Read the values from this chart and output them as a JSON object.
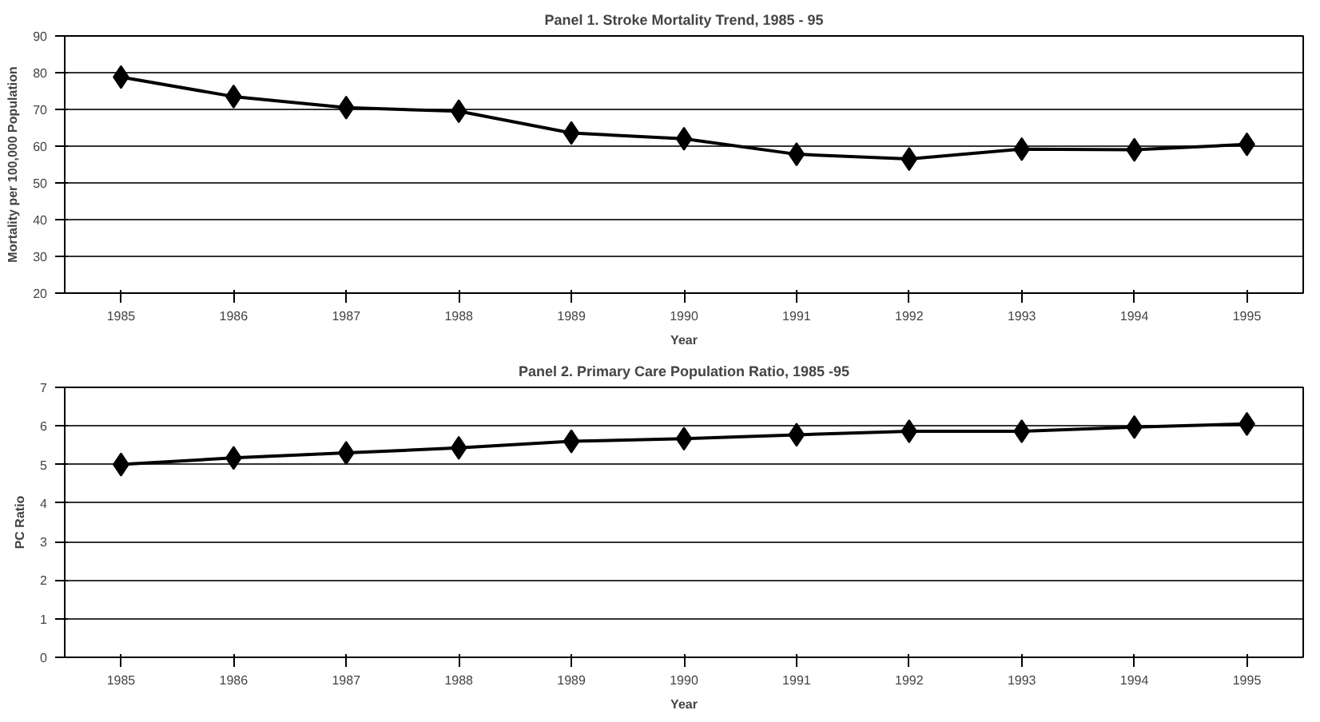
{
  "chart_data": [
    {
      "type": "line",
      "title": "Panel 1. Stroke Mortality Trend, 1985 - 95",
      "xlabel": "Year",
      "ylabel": "Mortality per 100,000 Population",
      "categories": [
        "1985",
        "1986",
        "1987",
        "1988",
        "1989",
        "1990",
        "1991",
        "1992",
        "1993",
        "1994",
        "1995"
      ],
      "series": [
        {
          "color": "#000000",
          "values": [
            78.8,
            73.5,
            70.5,
            69.5,
            63.6,
            62,
            57.8,
            56.5,
            59.2,
            59,
            60.5
          ]
        }
      ],
      "ylim": [
        20,
        90
      ],
      "yticks": [
        20,
        30,
        40,
        50,
        60,
        70,
        80,
        90
      ],
      "grid": "y",
      "marker": "diamond",
      "line_style": "solid"
    },
    {
      "type": "line",
      "title": "Panel 2. Primary Care Population Ratio, 1985 -95",
      "xlabel": "Year",
      "ylabel": "PC Ratio",
      "categories": [
        "1985",
        "1986",
        "1987",
        "1988",
        "1989",
        "1990",
        "1991",
        "1992",
        "1993",
        "1994",
        "1995"
      ],
      "series": [
        {
          "color": "#000000",
          "values": [
            5.0,
            5.17,
            5.3,
            5.43,
            5.6,
            5.67,
            5.77,
            5.86,
            5.86,
            5.97,
            6.05
          ]
        }
      ],
      "ylim": [
        0,
        7
      ],
      "yticks": [
        0,
        1,
        2,
        3,
        4,
        5,
        6,
        7
      ],
      "grid": "y",
      "marker": "diamond",
      "line_style": "solid"
    }
  ]
}
